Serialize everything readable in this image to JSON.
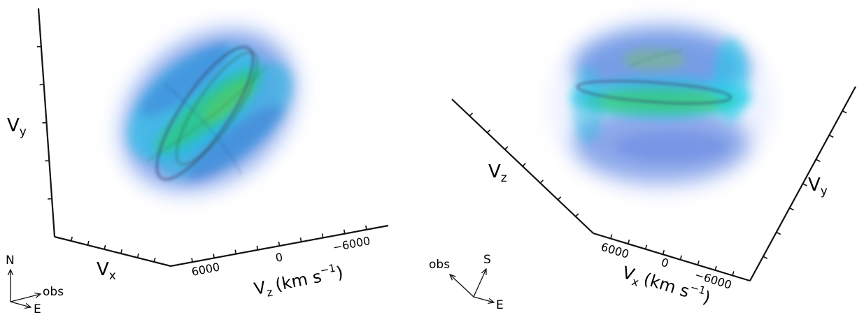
{
  "left_panel": {
    "axis_labels": {
      "vy": "V",
      "vy_sub": "y",
      "vx": "V",
      "vx_sub": "x",
      "vz": "V",
      "vz_sub": "z",
      "units_pre": "(km s",
      "units_exp": "−1",
      "units_post": ")"
    },
    "vz_ticks": [
      "6000",
      "0",
      "−6000"
    ],
    "compass": {
      "north": "N",
      "east": "E",
      "obs": "obs"
    }
  },
  "right_panel": {
    "axis_labels": {
      "vz": "V",
      "vz_sub": "z",
      "vy": "V",
      "vy_sub": "y",
      "vx": "V",
      "vx_sub": "x",
      "units_pre": "(km s",
      "units_exp": "−1",
      "units_post": ")"
    },
    "vx_ticks": [
      "6000",
      "0",
      "−6000"
    ],
    "compass": {
      "obs": "obs",
      "south": "S",
      "east": "E"
    }
  },
  "colors": {
    "volume_blue": "#2b66d6",
    "volume_cyan": "#15c7e6",
    "volume_green": "#2fd15a",
    "ring": "#3a3f6a"
  }
}
